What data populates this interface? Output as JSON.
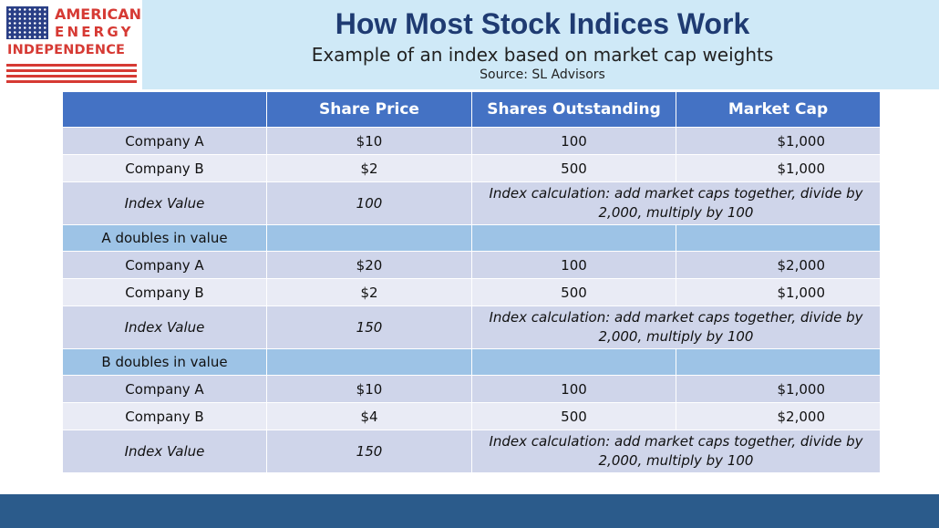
{
  "logo": {
    "line1": "AMERICAN",
    "line2": "ENERGY",
    "line3": "INDEPENDENCE"
  },
  "header": {
    "title": "How Most Stock Indices Work",
    "subtitle": "Example of an index based on market cap weights",
    "source": "Source: SL Advisors"
  },
  "table": {
    "headers": [
      "",
      "Share Price",
      "Shares Outstanding",
      "Market Cap"
    ],
    "index_note": "Index calculation: add market caps together, divide by 2,000, multiply by 100",
    "block1": {
      "company_a": {
        "name": "Company A",
        "price": "$10",
        "shares": "100",
        "mcap": "$1,000"
      },
      "company_b": {
        "name": "Company B",
        "price": "$2",
        "shares": "500",
        "mcap": "$1,000"
      },
      "index": {
        "name": "Index Value",
        "value": "100"
      }
    },
    "section2": "A doubles in value",
    "block2": {
      "company_a": {
        "name": "Company A",
        "price": "$20",
        "shares": "100",
        "mcap": "$2,000"
      },
      "company_b": {
        "name": "Company B",
        "price": "$2",
        "shares": "500",
        "mcap": "$1,000"
      },
      "index": {
        "name": "Index Value",
        "value": "150"
      }
    },
    "section3": "B doubles in value",
    "block3": {
      "company_a": {
        "name": "Company A",
        "price": "$10",
        "shares": "100",
        "mcap": "$1,000"
      },
      "company_b": {
        "name": "Company B",
        "price": "$4",
        "shares": "500",
        "mcap": "$2,000"
      },
      "index": {
        "name": "Index Value",
        "value": "150"
      }
    }
  },
  "colors": {
    "header_band": "#cfe9f7",
    "title": "#1f3b72",
    "table_header": "#4472c4",
    "row_odd": "#cfd5ea",
    "row_even": "#e9ebf5",
    "section_row": "#9dc3e6",
    "footer_band": "#2b5b8b",
    "logo_red": "#d63a34"
  }
}
